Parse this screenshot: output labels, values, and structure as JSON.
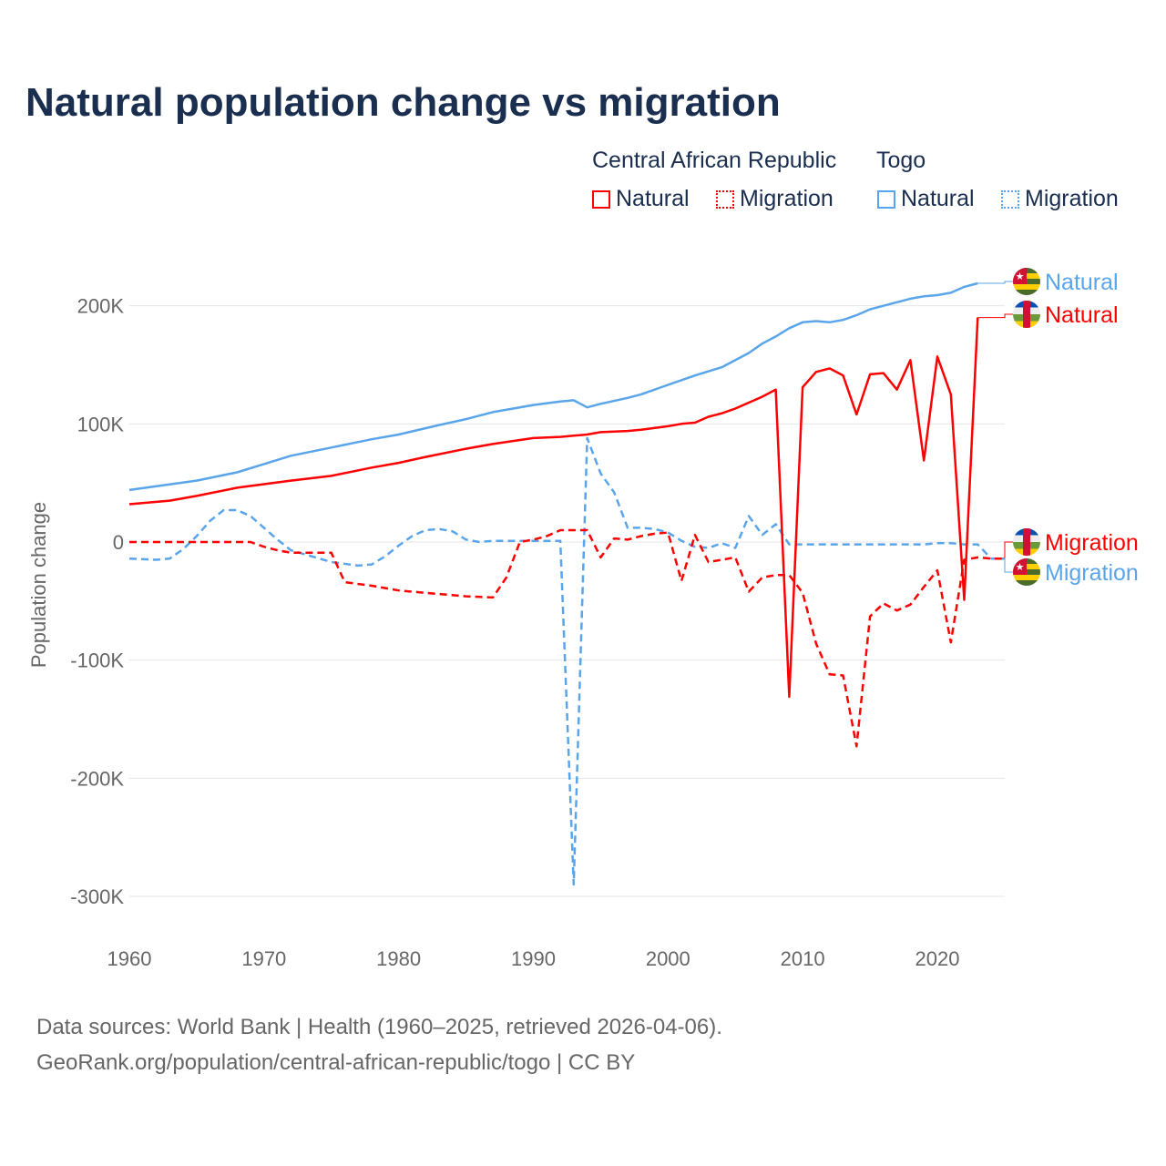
{
  "title": "Natural population change vs migration",
  "legend": {
    "groups": [
      {
        "name": "Central African Republic",
        "items": [
          "Natural",
          "Migration"
        ],
        "color": "#ff0000"
      },
      {
        "name": "Togo",
        "items": [
          "Natural",
          "Migration"
        ],
        "color": "#5aa5ea"
      }
    ]
  },
  "footer": {
    "line1": "Data sources: World Bank | Health (1960–2025, retrieved 2026-04-06).",
    "line2": "GeoRank.org/population/central-african-republic/togo | CC BY"
  },
  "chart_data": {
    "type": "line",
    "title": "Natural population change vs migration",
    "xlabel": "",
    "ylabel": "Population change",
    "xlim": [
      1960,
      2025
    ],
    "ylim": [
      -300000,
      220000
    ],
    "xticks": [
      1960,
      1970,
      1980,
      1990,
      2000,
      2010,
      2020
    ],
    "xtick_labels": [
      "1960",
      "1970",
      "1980",
      "1990",
      "2000",
      "2010",
      "2020"
    ],
    "yticks": [
      200000,
      100000,
      0,
      -100000,
      -200000,
      -300000
    ],
    "ytick_labels": [
      "200K",
      "100K",
      "0",
      "-100K",
      "-200K",
      "-300K"
    ],
    "grid": true,
    "legend_position": "top-right",
    "series": [
      {
        "name": "Togo Natural",
        "label": "Natural",
        "country": "Togo",
        "color": "#5aa5ea",
        "dash": false,
        "points": [
          [
            1960,
            44
          ],
          [
            1965,
            52
          ],
          [
            1968,
            59
          ],
          [
            1970,
            66
          ],
          [
            1972,
            73
          ],
          [
            1975,
            80
          ],
          [
            1978,
            87
          ],
          [
            1980,
            91
          ],
          [
            1983,
            99
          ],
          [
            1985,
            104
          ],
          [
            1987,
            110
          ],
          [
            1990,
            116
          ],
          [
            1992,
            119
          ],
          [
            1993,
            120
          ],
          [
            1994,
            114
          ],
          [
            1995,
            117
          ],
          [
            1997,
            122
          ],
          [
            1998,
            125
          ],
          [
            2000,
            133
          ],
          [
            2002,
            141
          ],
          [
            2004,
            148
          ],
          [
            2006,
            160
          ],
          [
            2007,
            168
          ],
          [
            2008,
            174
          ],
          [
            2009,
            181
          ],
          [
            2010,
            186
          ],
          [
            2011,
            187
          ],
          [
            2012,
            186
          ],
          [
            2013,
            188
          ],
          [
            2014,
            192
          ],
          [
            2015,
            197
          ],
          [
            2016,
            200
          ],
          [
            2017,
            203
          ],
          [
            2018,
            206
          ],
          [
            2019,
            208
          ],
          [
            2020,
            209
          ],
          [
            2021,
            211
          ],
          [
            2022,
            216
          ],
          [
            2023,
            219
          ]
        ]
      },
      {
        "name": "CAR Natural",
        "label": "Natural",
        "country": "Central African Republic",
        "color": "#ff0000",
        "dash": false,
        "points": [
          [
            1960,
            32
          ],
          [
            1963,
            35
          ],
          [
            1965,
            39
          ],
          [
            1968,
            46
          ],
          [
            1970,
            49
          ],
          [
            1972,
            52
          ],
          [
            1975,
            56
          ],
          [
            1978,
            63
          ],
          [
            1980,
            67
          ],
          [
            1982,
            72
          ],
          [
            1985,
            79
          ],
          [
            1987,
            83
          ],
          [
            1990,
            88
          ],
          [
            1992,
            89
          ],
          [
            1993,
            90
          ],
          [
            1994,
            91
          ],
          [
            1995,
            93
          ],
          [
            1997,
            94
          ],
          [
            1998,
            95
          ],
          [
            2000,
            98
          ],
          [
            2001,
            100
          ],
          [
            2002,
            101
          ],
          [
            2003,
            106
          ],
          [
            2004,
            109
          ],
          [
            2005,
            113
          ],
          [
            2006,
            118
          ],
          [
            2007,
            123
          ],
          [
            2008,
            129
          ],
          [
            2009,
            -131
          ],
          [
            2010,
            131
          ],
          [
            2011,
            144
          ],
          [
            2012,
            147
          ],
          [
            2013,
            141
          ],
          [
            2014,
            108
          ],
          [
            2015,
            142
          ],
          [
            2016,
            143
          ],
          [
            2017,
            129
          ],
          [
            2018,
            154
          ],
          [
            2019,
            69
          ],
          [
            2020,
            157
          ],
          [
            2021,
            125
          ],
          [
            2022,
            -49
          ],
          [
            2023,
            190
          ]
        ]
      },
      {
        "name": "CAR Migration",
        "label": "Migration",
        "country": "Central African Republic",
        "color": "#ff0000",
        "dash": true,
        "points": [
          [
            1960,
            0
          ],
          [
            1968,
            0
          ],
          [
            1969,
            0
          ],
          [
            1970,
            -4
          ],
          [
            1971,
            -7
          ],
          [
            1972,
            -9
          ],
          [
            1975,
            -9
          ],
          [
            1976,
            -34
          ],
          [
            1978,
            -37
          ],
          [
            1980,
            -41
          ],
          [
            1982,
            -43
          ],
          [
            1985,
            -46
          ],
          [
            1987,
            -47
          ],
          [
            1988,
            -30
          ],
          [
            1989,
            0
          ],
          [
            1990,
            2
          ],
          [
            1991,
            5
          ],
          [
            1992,
            10
          ],
          [
            1994,
            10
          ],
          [
            1995,
            -13
          ],
          [
            1996,
            3
          ],
          [
            1997,
            2
          ],
          [
            1998,
            5
          ],
          [
            1999,
            7
          ],
          [
            2000,
            8
          ],
          [
            2001,
            -33
          ],
          [
            2002,
            6
          ],
          [
            2003,
            -17
          ],
          [
            2004,
            -15
          ],
          [
            2005,
            -13
          ],
          [
            2006,
            -42
          ],
          [
            2007,
            -30
          ],
          [
            2008,
            -28
          ],
          [
            2009,
            -28
          ],
          [
            2010,
            -43
          ],
          [
            2011,
            -86
          ],
          [
            2012,
            -112
          ],
          [
            2013,
            -113
          ],
          [
            2014,
            -173
          ],
          [
            2015,
            -63
          ],
          [
            2016,
            -52
          ],
          [
            2017,
            -58
          ],
          [
            2018,
            -53
          ],
          [
            2019,
            -38
          ],
          [
            2020,
            -24
          ],
          [
            2021,
            -85
          ],
          [
            2022,
            -15
          ],
          [
            2023,
            -13
          ],
          [
            2024,
            -14
          ],
          [
            2025,
            -14
          ]
        ]
      },
      {
        "name": "Togo Migration",
        "label": "Migration",
        "country": "Togo",
        "color": "#5aa5ea",
        "dash": true,
        "points": [
          [
            1960,
            -14
          ],
          [
            1962,
            -15
          ],
          [
            1963,
            -14
          ],
          [
            1964,
            -6
          ],
          [
            1965,
            5
          ],
          [
            1966,
            18
          ],
          [
            1967,
            27
          ],
          [
            1968,
            27
          ],
          [
            1969,
            22
          ],
          [
            1970,
            12
          ],
          [
            1971,
            2
          ],
          [
            1972,
            -7
          ],
          [
            1975,
            -17
          ],
          [
            1977,
            -20
          ],
          [
            1978,
            -19
          ],
          [
            1979,
            -12
          ],
          [
            1980,
            -3
          ],
          [
            1981,
            5
          ],
          [
            1982,
            10
          ],
          [
            1983,
            11
          ],
          [
            1984,
            9
          ],
          [
            1985,
            2
          ],
          [
            1986,
            0
          ],
          [
            1987,
            1
          ],
          [
            1990,
            1
          ],
          [
            1992,
            1
          ],
          [
            1993,
            -290
          ],
          [
            1994,
            88
          ],
          [
            1995,
            58
          ],
          [
            1996,
            42
          ],
          [
            1997,
            12
          ],
          [
            1998,
            12
          ],
          [
            1999,
            11
          ],
          [
            2000,
            8
          ],
          [
            2001,
            1
          ],
          [
            2002,
            -4
          ],
          [
            2003,
            -5
          ],
          [
            2004,
            -1
          ],
          [
            2005,
            -5
          ],
          [
            2006,
            22
          ],
          [
            2007,
            6
          ],
          [
            2008,
            15
          ],
          [
            2009,
            -2
          ],
          [
            2019,
            -2
          ],
          [
            2020,
            -1
          ],
          [
            2021,
            -1
          ],
          [
            2022,
            -2
          ],
          [
            2023,
            -2
          ],
          [
            2024,
            -14
          ],
          [
            2025,
            -14
          ]
        ]
      }
    ],
    "value_units": "thousands",
    "end_labels": [
      {
        "text": "Natural",
        "country": "Togo",
        "color": "#5aa5ea"
      },
      {
        "text": "Natural",
        "country": "Central African Republic",
        "color": "#ff0000"
      },
      {
        "text": "Migration",
        "country": "Central African Republic",
        "color": "#ff0000"
      },
      {
        "text": "Migration",
        "country": "Togo",
        "color": "#5aa5ea"
      }
    ]
  }
}
